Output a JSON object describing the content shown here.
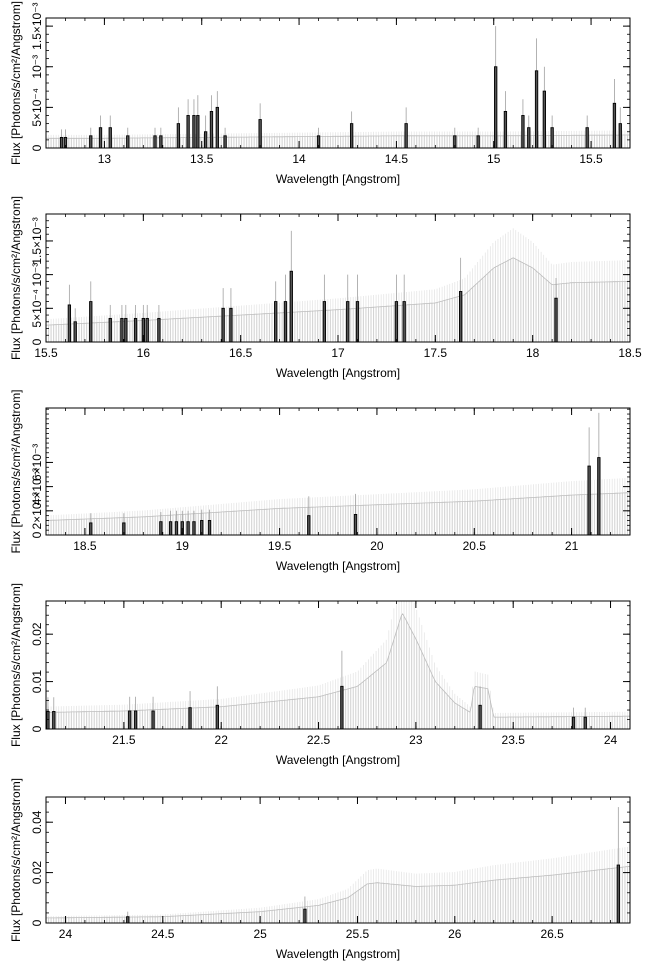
{
  "chart_data": [
    {
      "type": "bar",
      "xlabel": "Wavelength [Angstrom]",
      "ylabel": "Flux [Photons/s/cm²/Angstrom]",
      "xlim": [
        12.7,
        15.7
      ],
      "ylim": [
        0,
        0.0016
      ],
      "xticks": [
        {
          "v": 13,
          "label": "13"
        },
        {
          "v": 13.5,
          "label": "13.5"
        },
        {
          "v": 14,
          "label": "14"
        },
        {
          "v": 14.5,
          "label": "14.5"
        },
        {
          "v": 15,
          "label": "15"
        },
        {
          "v": 15.5,
          "label": "15.5"
        }
      ],
      "yticks": [
        {
          "v": 0,
          "label": "0"
        },
        {
          "v": 0.0005,
          "label": "5×10⁻⁴"
        },
        {
          "v": 0.001,
          "label": "10⁻³"
        },
        {
          "v": 0.0015,
          "label": "1.5×10⁻³"
        }
      ],
      "continuum": [
        [
          12.7,
          0.00012
        ],
        [
          13.0,
          0.00012
        ],
        [
          13.5,
          0.00013
        ],
        [
          14.0,
          0.00014
        ],
        [
          14.5,
          0.00015
        ],
        [
          15.0,
          0.00015
        ],
        [
          15.7,
          0.00016
        ]
      ],
      "detections": [
        {
          "x": 12.78,
          "y": 0.00013,
          "err": 0.0001
        },
        {
          "x": 12.8,
          "y": 0.00013,
          "err": 0.0001
        },
        {
          "x": 12.93,
          "y": 0.00015,
          "err": 0.0001
        },
        {
          "x": 12.98,
          "y": 0.00025,
          "err": 0.00015
        },
        {
          "x": 13.03,
          "y": 0.00025,
          "err": 0.00015
        },
        {
          "x": 13.12,
          "y": 0.00015,
          "err": 0.0001
        },
        {
          "x": 13.26,
          "y": 0.00015,
          "err": 0.0001
        },
        {
          "x": 13.29,
          "y": 0.00015,
          "err": 0.0001
        },
        {
          "x": 13.38,
          "y": 0.0003,
          "err": 0.0002
        },
        {
          "x": 13.43,
          "y": 0.0004,
          "err": 0.0002
        },
        {
          "x": 13.46,
          "y": 0.0004,
          "err": 0.0002
        },
        {
          "x": 13.48,
          "y": 0.0004,
          "err": 0.00025
        },
        {
          "x": 13.52,
          "y": 0.0002,
          "err": 0.0002
        },
        {
          "x": 13.55,
          "y": 0.00045,
          "err": 0.0002
        },
        {
          "x": 13.58,
          "y": 0.0005,
          "err": 0.0002
        },
        {
          "x": 13.62,
          "y": 0.00015,
          "err": 0.0001
        },
        {
          "x": 13.8,
          "y": 0.00035,
          "err": 0.0002
        },
        {
          "x": 14.1,
          "y": 0.00015,
          "err": 0.0001
        },
        {
          "x": 14.27,
          "y": 0.0003,
          "err": 0.00015
        },
        {
          "x": 14.55,
          "y": 0.0003,
          "err": 0.0002
        },
        {
          "x": 14.8,
          "y": 0.00015,
          "err": 0.0001
        },
        {
          "x": 14.92,
          "y": 0.00015,
          "err": 0.0001
        },
        {
          "x": 15.01,
          "y": 0.001,
          "err": 0.0005
        },
        {
          "x": 15.06,
          "y": 0.00045,
          "err": 0.00025
        },
        {
          "x": 15.15,
          "y": 0.0004,
          "err": 0.0002
        },
        {
          "x": 15.18,
          "y": 0.00025,
          "err": 0.00015
        },
        {
          "x": 15.22,
          "y": 0.00095,
          "err": 0.0004
        },
        {
          "x": 15.26,
          "y": 0.0007,
          "err": 0.0003
        },
        {
          "x": 15.3,
          "y": 0.00025,
          "err": 0.00015
        },
        {
          "x": 15.48,
          "y": 0.00025,
          "err": 0.00015
        },
        {
          "x": 15.62,
          "y": 0.00055,
          "err": 0.0003
        },
        {
          "x": 15.65,
          "y": 0.0003,
          "err": 0.0002
        }
      ]
    },
    {
      "type": "bar",
      "xlabel": "Wavelength [Angstrom]",
      "ylabel": "Flux [Photons/s/cm²/Angstrom]",
      "xlim": [
        15.5,
        18.5
      ],
      "ylim": [
        0,
        0.0019
      ],
      "xticks": [
        {
          "v": 15.5,
          "label": "15.5"
        },
        {
          "v": 16,
          "label": "16"
        },
        {
          "v": 16.5,
          "label": "16.5"
        },
        {
          "v": 17,
          "label": "17"
        },
        {
          "v": 17.5,
          "label": "17.5"
        },
        {
          "v": 18,
          "label": "18"
        },
        {
          "v": 18.5,
          "label": "18.5"
        }
      ],
      "yticks": [
        {
          "v": 0,
          "label": "0"
        },
        {
          "v": 0.0005,
          "label": "5×10⁻⁴"
        },
        {
          "v": 0.001,
          "label": "10⁻³"
        },
        {
          "v": 0.0015,
          "label": "1.5×10⁻³"
        }
      ],
      "continuum": [
        [
          15.5,
          0.00025
        ],
        [
          16.0,
          0.00032
        ],
        [
          16.5,
          0.0004
        ],
        [
          17.0,
          0.00048
        ],
        [
          17.5,
          0.00058
        ],
        [
          17.65,
          0.0007
        ],
        [
          17.8,
          0.0011
        ],
        [
          17.9,
          0.00125
        ],
        [
          18.0,
          0.0011
        ],
        [
          18.1,
          0.00085
        ],
        [
          18.2,
          0.00088
        ],
        [
          18.5,
          0.0009
        ]
      ],
      "detections": [
        {
          "x": 15.62,
          "y": 0.00055,
          "err": 0.0003
        },
        {
          "x": 15.65,
          "y": 0.0003,
          "err": 0.0002
        },
        {
          "x": 15.73,
          "y": 0.0006,
          "err": 0.0003
        },
        {
          "x": 15.83,
          "y": 0.00035,
          "err": 0.0002
        },
        {
          "x": 15.89,
          "y": 0.00035,
          "err": 0.0002
        },
        {
          "x": 15.91,
          "y": 0.00035,
          "err": 0.0002
        },
        {
          "x": 15.96,
          "y": 0.00035,
          "err": 0.0002
        },
        {
          "x": 16.0,
          "y": 0.00035,
          "err": 0.0002
        },
        {
          "x": 16.02,
          "y": 0.00035,
          "err": 0.0002
        },
        {
          "x": 16.08,
          "y": 0.00035,
          "err": 0.0002
        },
        {
          "x": 16.41,
          "y": 0.0005,
          "err": 0.0003
        },
        {
          "x": 16.45,
          "y": 0.0005,
          "err": 0.0003
        },
        {
          "x": 16.68,
          "y": 0.0006,
          "err": 0.0003
        },
        {
          "x": 16.73,
          "y": 0.0006,
          "err": 0.0004
        },
        {
          "x": 16.76,
          "y": 0.00105,
          "err": 0.0006
        },
        {
          "x": 16.93,
          "y": 0.0006,
          "err": 0.0004
        },
        {
          "x": 17.05,
          "y": 0.0006,
          "err": 0.0004
        },
        {
          "x": 17.1,
          "y": 0.0006,
          "err": 0.0004
        },
        {
          "x": 17.3,
          "y": 0.0006,
          "err": 0.0004
        },
        {
          "x": 17.34,
          "y": 0.0006,
          "err": 0.0004
        },
        {
          "x": 17.63,
          "y": 0.00075,
          "err": 0.0005
        },
        {
          "x": 18.12,
          "y": 0.00065,
          "err": 0.0003
        }
      ]
    },
    {
      "type": "bar",
      "xlabel": "Wavelength [Angstrom]",
      "ylabel": "Flux [Photons/s/cm²/Angstrom]",
      "xlim": [
        18.3,
        21.3
      ],
      "ylim": [
        0,
        0.0105
      ],
      "xticks": [
        {
          "v": 18.5,
          "label": "18.5"
        },
        {
          "v": 19,
          "label": "19"
        },
        {
          "v": 19.5,
          "label": "19.5"
        },
        {
          "v": 20,
          "label": "20"
        },
        {
          "v": 20.5,
          "label": "20.5"
        },
        {
          "v": 21,
          "label": "21"
        }
      ],
      "yticks": [
        {
          "v": 0,
          "label": "0"
        },
        {
          "v": 0.002,
          "label": "2×10⁻³"
        },
        {
          "v": 0.004,
          "label": "4×10⁻³"
        },
        {
          "v": 0.006,
          "label": "6×10⁻³"
        }
      ],
      "continuum": [
        [
          18.3,
          0.0012
        ],
        [
          18.8,
          0.0015
        ],
        [
          19.5,
          0.0022
        ],
        [
          20.0,
          0.0025
        ],
        [
          20.5,
          0.0028
        ],
        [
          21.0,
          0.0033
        ],
        [
          21.3,
          0.0035
        ]
      ],
      "detections": [
        {
          "x": 18.53,
          "y": 0.001,
          "err": 0.0008
        },
        {
          "x": 18.7,
          "y": 0.001,
          "err": 0.0008
        },
        {
          "x": 18.89,
          "y": 0.0011,
          "err": 0.0008
        },
        {
          "x": 18.94,
          "y": 0.0011,
          "err": 0.0009
        },
        {
          "x": 18.97,
          "y": 0.0011,
          "err": 0.0009
        },
        {
          "x": 19.0,
          "y": 0.0011,
          "err": 0.0009
        },
        {
          "x": 19.03,
          "y": 0.0011,
          "err": 0.0009
        },
        {
          "x": 19.06,
          "y": 0.0011,
          "err": 0.0009
        },
        {
          "x": 19.1,
          "y": 0.0012,
          "err": 0.0009
        },
        {
          "x": 19.14,
          "y": 0.0012,
          "err": 0.0009
        },
        {
          "x": 19.65,
          "y": 0.0016,
          "err": 0.0016
        },
        {
          "x": 19.89,
          "y": 0.0017,
          "err": 0.0017
        },
        {
          "x": 21.09,
          "y": 0.0057,
          "err": 0.0032
        },
        {
          "x": 21.14,
          "y": 0.0064,
          "err": 0.0037
        }
      ]
    },
    {
      "type": "bar",
      "xlabel": "Wavelength [Angstrom]",
      "ylabel": "Flux [Photons/s/cm²/Angstrom]",
      "xlim": [
        21.1,
        24.1
      ],
      "ylim": [
        0,
        0.027
      ],
      "xticks": [
        {
          "v": 21.5,
          "label": "21.5"
        },
        {
          "v": 22,
          "label": "22"
        },
        {
          "v": 22.5,
          "label": "22.5"
        },
        {
          "v": 23,
          "label": "23"
        },
        {
          "v": 23.5,
          "label": "23.5"
        },
        {
          "v": 24,
          "label": "24"
        }
      ],
      "yticks": [
        {
          "v": 0,
          "label": "0"
        },
        {
          "v": 0.01,
          "label": "0.01"
        },
        {
          "v": 0.02,
          "label": "0.02"
        }
      ],
      "continuum": [
        [
          21.1,
          0.0035
        ],
        [
          21.5,
          0.0038
        ],
        [
          22.0,
          0.0047
        ],
        [
          22.5,
          0.0068
        ],
        [
          22.7,
          0.009
        ],
        [
          22.85,
          0.014
        ],
        [
          22.93,
          0.0245
        ],
        [
          23.0,
          0.019
        ],
        [
          23.1,
          0.01
        ],
        [
          23.2,
          0.0055
        ],
        [
          23.28,
          0.0035
        ],
        [
          23.3,
          0.009
        ],
        [
          23.37,
          0.0085
        ],
        [
          23.4,
          0.0025
        ],
        [
          24.1,
          0.0027
        ]
      ],
      "detections": [
        {
          "x": 21.11,
          "y": 0.0037,
          "err": 0.003
        },
        {
          "x": 21.14,
          "y": 0.0037,
          "err": 0.003
        },
        {
          "x": 21.53,
          "y": 0.0038,
          "err": 0.003
        },
        {
          "x": 21.56,
          "y": 0.0038,
          "err": 0.003
        },
        {
          "x": 21.65,
          "y": 0.0038,
          "err": 0.003
        },
        {
          "x": 21.84,
          "y": 0.0045,
          "err": 0.0035
        },
        {
          "x": 21.98,
          "y": 0.005,
          "err": 0.004
        },
        {
          "x": 22.62,
          "y": 0.009,
          "err": 0.0075
        },
        {
          "x": 23.33,
          "y": 0.005,
          "err": 0.004
        },
        {
          "x": 23.81,
          "y": 0.0025,
          "err": 0.002
        },
        {
          "x": 23.87,
          "y": 0.0025,
          "err": 0.002
        }
      ]
    },
    {
      "type": "bar",
      "xlabel": "Wavelength [Angstrom]",
      "ylabel": "Flux [Photons/s/cm²/Angstrom]",
      "xlim": [
        23.9,
        26.9
      ],
      "ylim": [
        0,
        0.05
      ],
      "xticks": [
        {
          "v": 24,
          "label": "24"
        },
        {
          "v": 24.5,
          "label": "24.5"
        },
        {
          "v": 25,
          "label": "25"
        },
        {
          "v": 25.5,
          "label": "25.5"
        },
        {
          "v": 26,
          "label": "26"
        },
        {
          "v": 26.5,
          "label": "26.5"
        }
      ],
      "yticks": [
        {
          "v": 0,
          "label": "0"
        },
        {
          "v": 0.02,
          "label": "0.02"
        },
        {
          "v": 0.04,
          "label": "0.04"
        }
      ],
      "continuum": [
        [
          23.9,
          0.002
        ],
        [
          24.5,
          0.0025
        ],
        [
          25.0,
          0.0045
        ],
        [
          25.3,
          0.007
        ],
        [
          25.45,
          0.01
        ],
        [
          25.55,
          0.0155
        ],
        [
          25.6,
          0.016
        ],
        [
          25.8,
          0.0145
        ],
        [
          26.0,
          0.015
        ],
        [
          26.2,
          0.017
        ],
        [
          26.5,
          0.019
        ],
        [
          26.9,
          0.0225
        ]
      ],
      "detections": [
        {
          "x": 24.32,
          "y": 0.0025,
          "err": 0.002
        },
        {
          "x": 25.23,
          "y": 0.0055,
          "err": 0.005
        },
        {
          "x": 26.84,
          "y": 0.023,
          "err": 0.023
        }
      ]
    }
  ]
}
